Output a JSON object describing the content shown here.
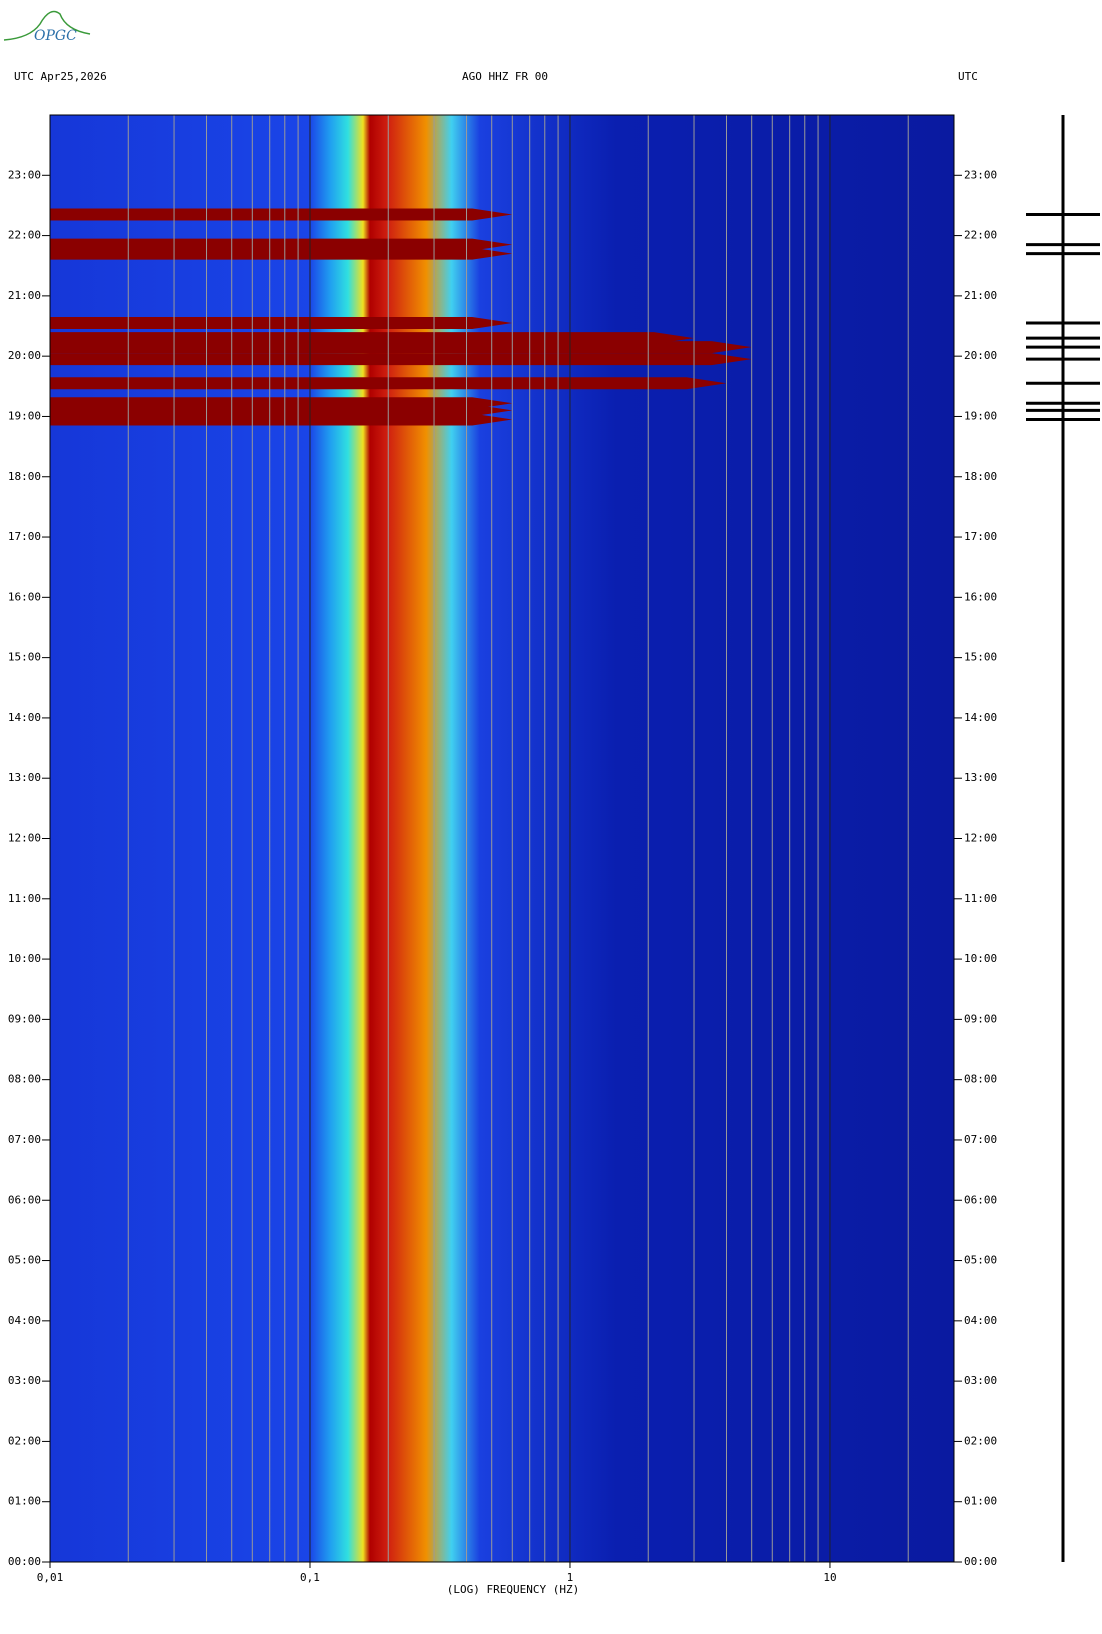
{
  "logo": "OPGC",
  "chart_data": {
    "type": "spectrogram",
    "title_left": "UTC  Apr25,2026",
    "title": "AGO HHZ FR 00",
    "title_right": "UTC",
    "x_label": "(LOG) FREQUENCY (HZ)",
    "log_x": true,
    "xlim": [
      0.01,
      30
    ],
    "xticks": [
      {
        "value": 0.01,
        "label": "0,01"
      },
      {
        "value": 0.1,
        "label": "0,1"
      },
      1,
      10
    ],
    "xminor": [
      0.02,
      0.03,
      0.04,
      0.05,
      0.06,
      0.07,
      0.08,
      0.09,
      0.2,
      0.3,
      0.4,
      0.5,
      0.6,
      0.7,
      0.8,
      0.9,
      2,
      3,
      4,
      5,
      6,
      7,
      8,
      9,
      20
    ],
    "ylim": [
      0,
      24
    ],
    "yticks": [
      {
        "value": 0,
        "label": "00:00"
      },
      {
        "value": 1,
        "label": "01:00"
      },
      {
        "value": 2,
        "label": "02:00"
      },
      {
        "value": 3,
        "label": "03:00"
      },
      {
        "value": 4,
        "label": "04:00"
      },
      {
        "value": 5,
        "label": "05:00"
      },
      {
        "value": 6,
        "label": "06:00"
      },
      {
        "value": 7,
        "label": "07:00"
      },
      {
        "value": 8,
        "label": "08:00"
      },
      {
        "value": 9,
        "label": "09:00"
      },
      {
        "value": 10,
        "label": "10:00"
      },
      {
        "value": 11,
        "label": "11:00"
      },
      {
        "value": 12,
        "label": "12:00"
      },
      {
        "value": 13,
        "label": "13:00"
      },
      {
        "value": 14,
        "label": "14:00"
      },
      {
        "value": 15,
        "label": "15:00"
      },
      {
        "value": 16,
        "label": "16:00"
      },
      {
        "value": 17,
        "label": "17:00"
      },
      {
        "value": 18,
        "label": "18:00"
      },
      {
        "value": 19,
        "label": "19:00"
      },
      {
        "value": 20,
        "label": "20:00"
      },
      {
        "value": 21,
        "label": "21:00"
      },
      {
        "value": 22,
        "label": "22:00"
      },
      {
        "value": 23,
        "label": "23:00"
      }
    ],
    "spectrum": {
      "freq": [
        0.01,
        0.1,
        0.12,
        0.14,
        0.16,
        0.17,
        0.2,
        0.28,
        0.35,
        0.45,
        1.5,
        30
      ],
      "colors": [
        "#1637d8",
        "#1a45e8",
        "#20a0f0",
        "#30e0e0",
        "#f0e020",
        "#b00000",
        "#d02010",
        "#f09000",
        "#40d0f0",
        "#1a40e0",
        "#0a1fb0",
        "#0a1aa0"
      ]
    },
    "events": {
      "hours": [
        18.95,
        19.1,
        19.22,
        19.55,
        19.95,
        20.15,
        20.3,
        20.55,
        21.7,
        21.85,
        22.35
      ],
      "max_freq": [
        0.6,
        0.6,
        0.6,
        4,
        5,
        5,
        3,
        0.6,
        0.6,
        0.6,
        0.6
      ],
      "color": "#8b0000"
    },
    "grid": true
  }
}
